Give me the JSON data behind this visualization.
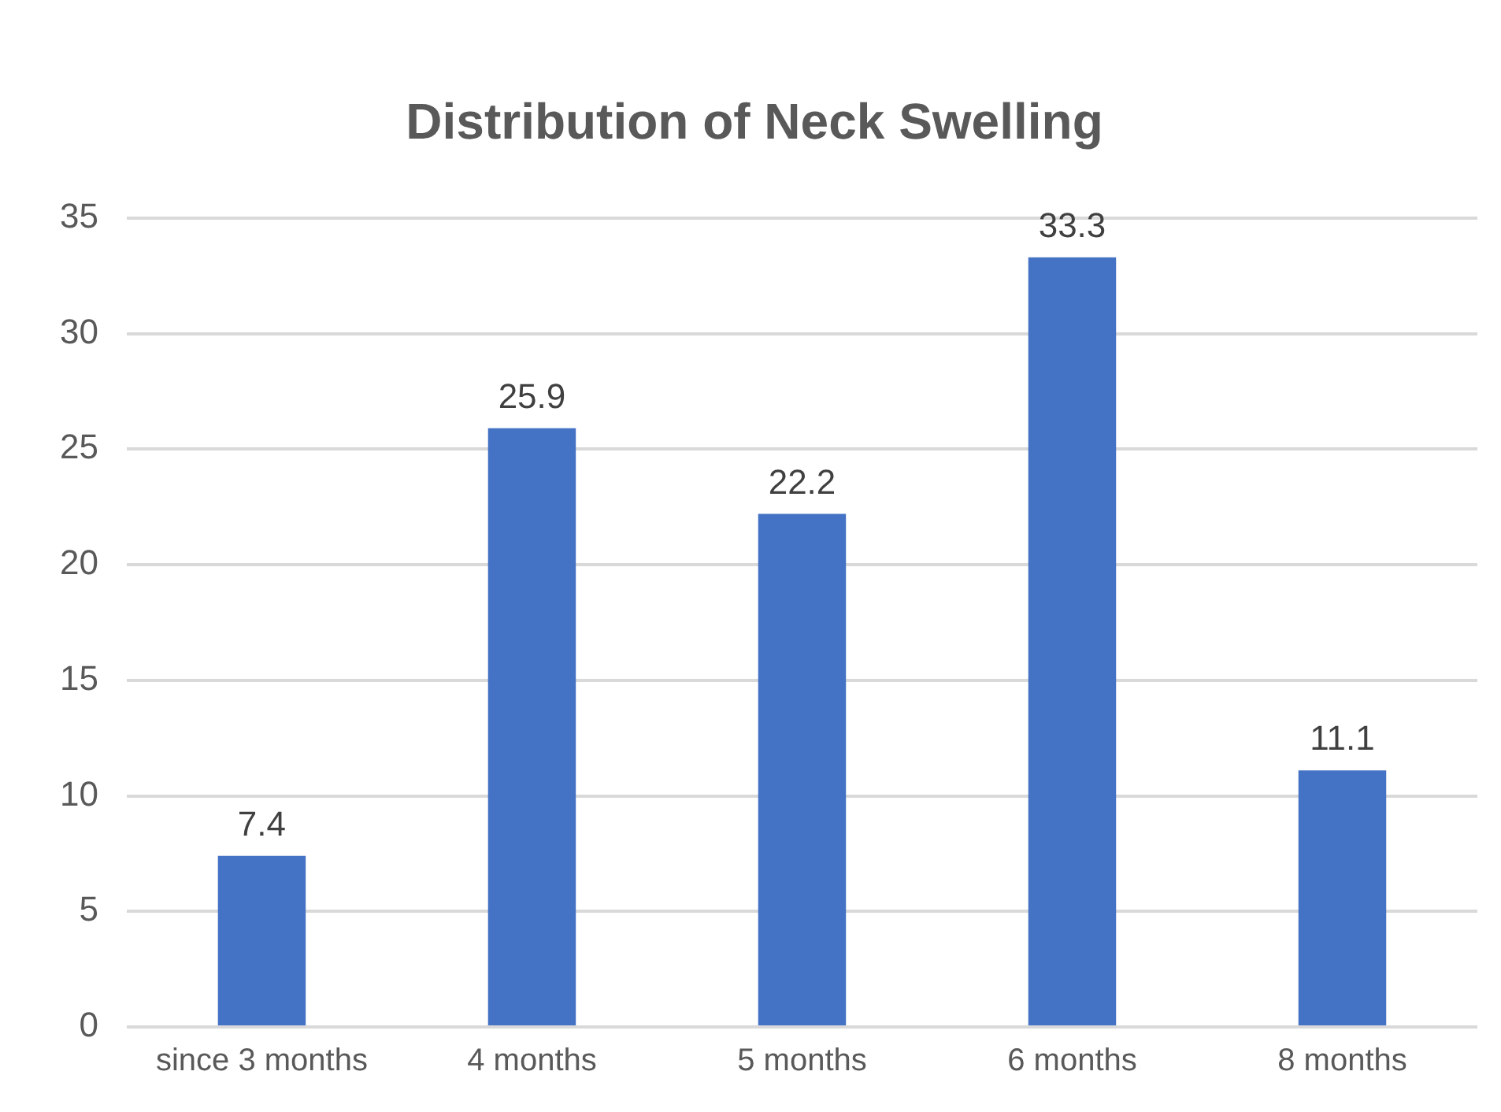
{
  "chart_data": {
    "type": "bar",
    "title": "Distribution of Neck Swelling",
    "categories": [
      "since 3 months",
      "4 months",
      "5 months",
      "6 months",
      "8 months"
    ],
    "values": [
      7.4,
      25.9,
      22.2,
      33.3,
      11.1
    ],
    "color": "#4472c4",
    "ylim": [
      0,
      35
    ],
    "yticks": [
      0,
      5,
      10,
      15,
      20,
      25,
      30,
      35
    ],
    "grid": "y",
    "data_labels": true
  }
}
